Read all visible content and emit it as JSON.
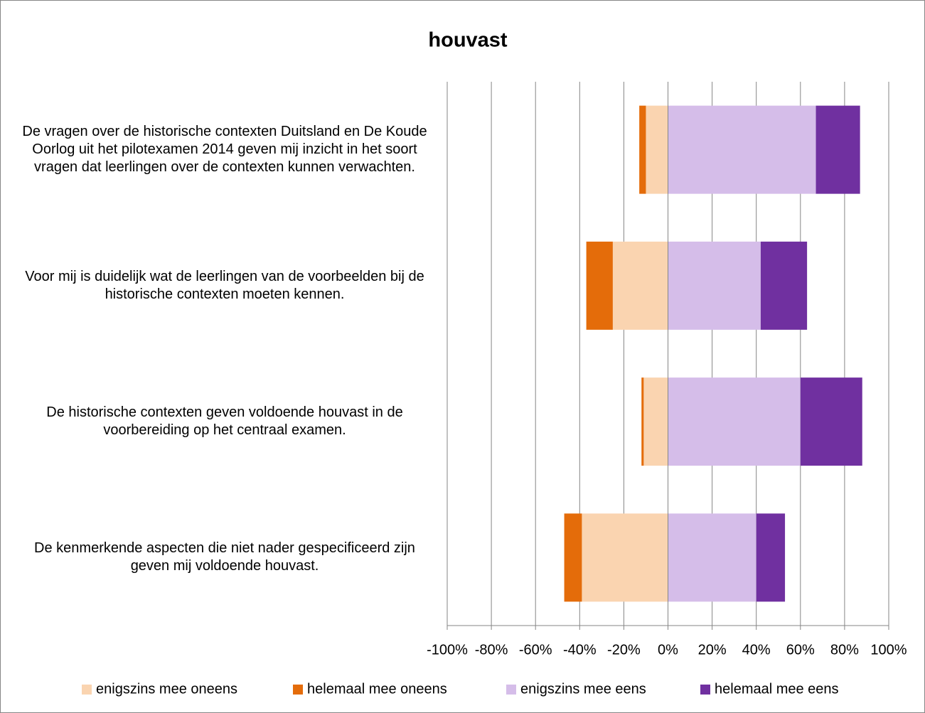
{
  "chart_data": {
    "type": "bar",
    "orientation": "horizontal",
    "stacked": true,
    "title": "houvast",
    "categories": [
      "De vragen over de historische contexten Duitsland en De Koude Oorlog uit het pilotexamen 2014 geven mij inzicht in het soort vragen dat leerlingen over de contexten kunnen verwachten.",
      "Voor mij is duidelijk wat de leerlingen van de voorbeelden bij de historische contexten moeten kennen.",
      "De historische contexten geven voldoende houvast in de voorbereiding op het centraal examen.",
      "De kenmerkende aspecten die niet nader gespecificeerd zijn geven mij voldoende houvast."
    ],
    "series": [
      {
        "name": "enigszins mee oneens",
        "color": "#fad4b0",
        "values": [
          -10,
          -25,
          -11,
          -39
        ]
      },
      {
        "name": "helemaal mee oneens",
        "color": "#e46c0a",
        "values": [
          -3,
          -12,
          -1,
          -8
        ]
      },
      {
        "name": "enigszins mee eens",
        "color": "#d5bde9",
        "values": [
          67,
          42,
          60,
          40
        ]
      },
      {
        "name": "helemaal mee eens",
        "color": "#7030a0",
        "values": [
          20,
          21,
          28,
          13
        ]
      }
    ],
    "xlim": [
      -100,
      100
    ],
    "xticks": [
      {
        "value": -100,
        "label": "-100%"
      },
      {
        "value": -80,
        "label": "-80%"
      },
      {
        "value": -60,
        "label": "-60%"
      },
      {
        "value": -40,
        "label": "-40%"
      },
      {
        "value": -20,
        "label": "-20%"
      },
      {
        "value": 0,
        "label": "0%"
      },
      {
        "value": 20,
        "label": "20%"
      },
      {
        "value": 40,
        "label": "40%"
      },
      {
        "value": 60,
        "label": "60%"
      },
      {
        "value": 80,
        "label": "80%"
      },
      {
        "value": 100,
        "label": "100%"
      }
    ],
    "grid": true,
    "legend": "bottom"
  }
}
